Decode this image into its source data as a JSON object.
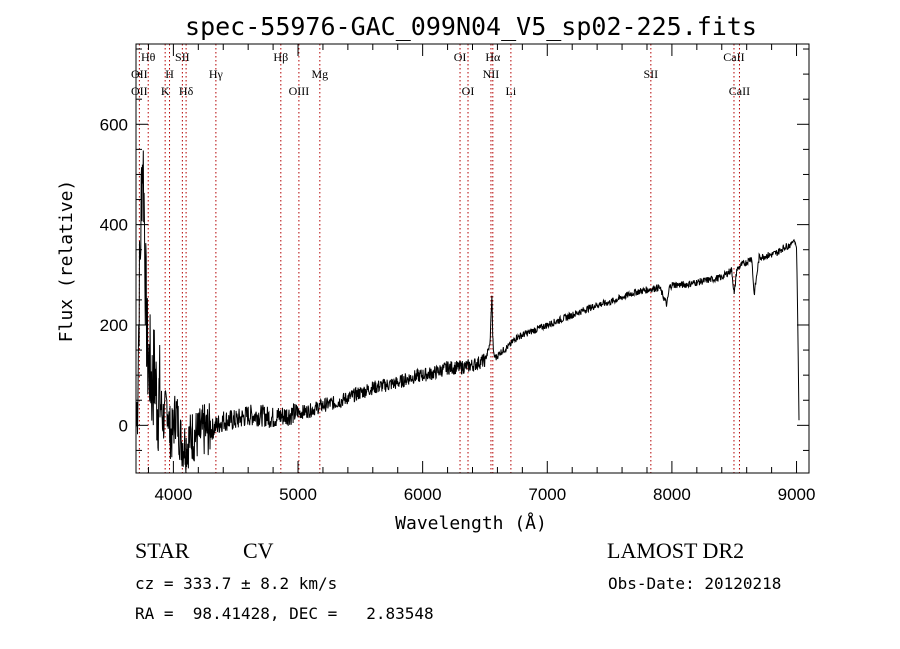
{
  "chart_data": {
    "type": "line",
    "title": "spec-55976-GAC_099N04_V5_sp02-225.fits",
    "xlabel": "Wavelength (Å)",
    "ylabel": "Flux (relative)",
    "xlim": [
      3700,
      9100
    ],
    "ylim": [
      -95,
      760
    ],
    "x_ticks": [
      4000,
      5000,
      6000,
      7000,
      8000,
      9000
    ],
    "y_ticks": [
      0,
      200,
      400,
      600
    ],
    "grid": false,
    "series": [
      {
        "x": [
          3705,
          3715,
          3725,
          3735,
          3745,
          3755,
          3765,
          3775,
          3785,
          3795,
          3810,
          3830,
          3850,
          3870,
          3890,
          3910,
          3930,
          3950,
          3970,
          3990,
          4020,
          4060,
          4100,
          4150,
          4200,
          4250,
          4300,
          4350,
          4400,
          4450,
          4500,
          4600,
          4700,
          4800,
          4900,
          5000,
          5100,
          5200,
          5300,
          5400,
          5500,
          5600,
          5700,
          5800,
          5900,
          6000,
          6100,
          6200,
          6300,
          6400,
          6500,
          6540,
          6556,
          6562,
          6570,
          6590,
          6620,
          6650,
          6700,
          6750,
          6800,
          6900,
          7000,
          7100,
          7200,
          7300,
          7400,
          7500,
          7600,
          7700,
          7800,
          7900,
          7960,
          7980,
          8000,
          8100,
          8200,
          8300,
          8400,
          8480,
          8500,
          8520,
          8560,
          8600,
          8640,
          8660,
          8700,
          8800,
          8850,
          8900,
          8950,
          8980,
          9000,
          9010,
          9020
        ],
        "y": [
          0,
          100,
          250,
          350,
          480,
          540,
          450,
          300,
          200,
          130,
          120,
          80,
          110,
          40,
          60,
          20,
          10,
          50,
          -10,
          -20,
          30,
          -30,
          -40,
          -20,
          -20,
          -10,
          -10,
          0,
          10,
          10,
          10,
          20,
          20,
          15,
          20,
          25,
          30,
          40,
          45,
          55,
          65,
          75,
          80,
          85,
          95,
          100,
          105,
          115,
          115,
          120,
          130,
          160,
          260,
          180,
          140,
          135,
          145,
          150,
          160,
          175,
          180,
          190,
          200,
          210,
          220,
          230,
          240,
          245,
          255,
          265,
          270,
          275,
          240,
          275,
          280,
          280,
          285,
          290,
          295,
          310,
          260,
          310,
          320,
          325,
          335,
          260,
          335,
          340,
          345,
          355,
          360,
          370,
          355,
          200,
          10
        ]
      }
    ],
    "line_markers": [
      {
        "label": "Hθ",
        "x": 3798,
        "row": 1
      },
      {
        "label": "OII",
        "x": 3727,
        "row": 2
      },
      {
        "label": "OII",
        "x": 3727,
        "row": 3
      },
      {
        "label": "H",
        "x": 3969,
        "row": 2
      },
      {
        "label": "K",
        "x": 3934,
        "row": 3
      },
      {
        "label": "SII",
        "x": 4072,
        "row": 1
      },
      {
        "label": "Hδ",
        "x": 4102,
        "row": 3
      },
      {
        "label": "Hγ",
        "x": 4341,
        "row": 2
      },
      {
        "label": "Hβ",
        "x": 4862,
        "row": 1
      },
      {
        "label": "OIII",
        "x": 5007,
        "row": 3
      },
      {
        "label": "Mg",
        "x": 5175,
        "row": 2
      },
      {
        "label": "OI",
        "x": 6300,
        "row": 1
      },
      {
        "label": "OI",
        "x": 6364,
        "row": 3
      },
      {
        "label": "Hα",
        "x": 6563,
        "row": 1
      },
      {
        "label": "NII",
        "x": 6548,
        "row": 2
      },
      {
        "label": "Li",
        "x": 6708,
        "row": 3
      },
      {
        "label": "SII",
        "x": 7831,
        "row": 2
      },
      {
        "label": "CaII",
        "x": 8498,
        "row": 1
      },
      {
        "label": "CaII",
        "x": 8542,
        "row": 3
      }
    ]
  },
  "info": {
    "class_label": "STAR",
    "subclass_label": "CV",
    "survey": "LAMOST DR2",
    "redshift": "cz = 333.7 ± 8.2 km/s",
    "obs_date": "Obs-Date: 20120218",
    "coords": "RA =  98.41428, DEC =   2.83548"
  }
}
